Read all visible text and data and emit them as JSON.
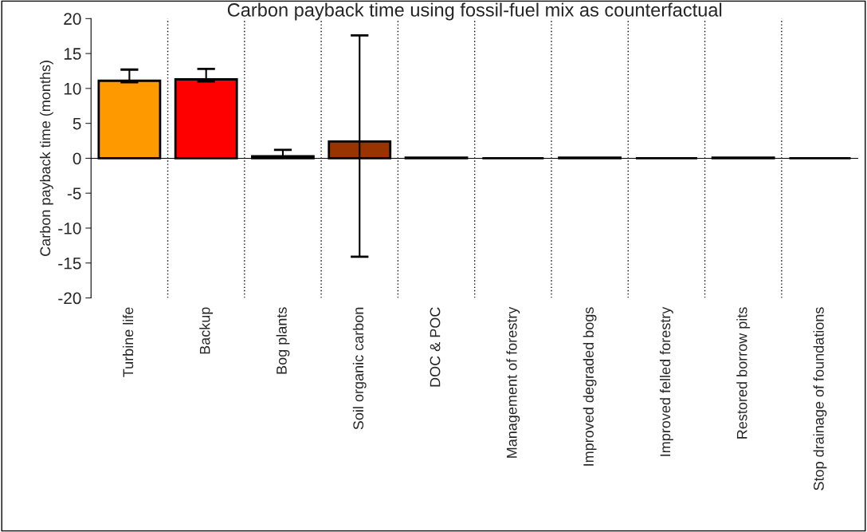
{
  "chart_data": {
    "type": "bar",
    "title": "Carbon payback time using fossil-fuel mix as counterfactual",
    "ylabel": "Carbon payback time (months)",
    "categories": [
      "Turbine life",
      "Backup",
      "Bog plants",
      "Soil organic carbon",
      "DOC & POC",
      "Management of forestry",
      "Improved degraded bogs",
      "Improved felled forestry",
      "Restored borrow pits",
      "Stop drainage of foundations"
    ],
    "values": [
      11.1,
      11.3,
      0.3,
      2.4,
      0.1,
      0,
      0.1,
      0,
      0.1,
      0
    ],
    "errors": [
      [
        10.9,
        12.7
      ],
      [
        11.0,
        12.8
      ],
      [
        0.1,
        1.2
      ],
      [
        -14.1,
        17.6
      ],
      null,
      null,
      null,
      null,
      null,
      null
    ],
    "colors": [
      "#ff9900",
      "#ff0000",
      "#006600",
      "#993300",
      "#000000",
      "#000000",
      "#000000",
      "#000000",
      "#000000",
      "#000000"
    ],
    "ylim": [
      -20,
      20
    ],
    "yticks": [
      -20,
      -15,
      -10,
      -5,
      0,
      5,
      10,
      15,
      20
    ],
    "grid": "x"
  }
}
